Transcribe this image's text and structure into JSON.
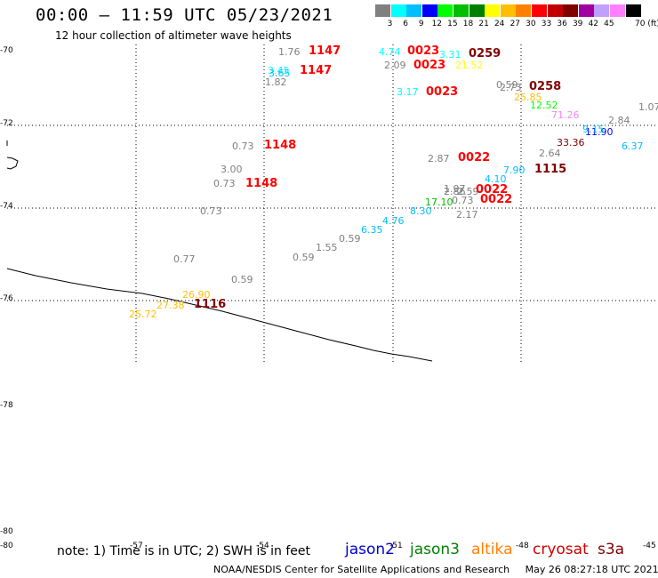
{
  "header": {
    "title": "00:00 – 11:59 UTC 05/23/2021",
    "subtitle": "12 hour collection of altimeter wave heights"
  },
  "legend": {
    "unit": "70 (ft)",
    "bins": [
      {
        "label": "3",
        "color": "#808080"
      },
      {
        "label": "6",
        "color": "#00ffff"
      },
      {
        "label": "9",
        "color": "#00bfff"
      },
      {
        "label": "12",
        "color": "#0000ff"
      },
      {
        "label": "15",
        "color": "#00ff00"
      },
      {
        "label": "18",
        "color": "#00bf00"
      },
      {
        "label": "21",
        "color": "#008000"
      },
      {
        "label": "24",
        "color": "#ffff00"
      },
      {
        "label": "27",
        "color": "#ffbf00"
      },
      {
        "label": "30",
        "color": "#ff8000"
      },
      {
        "label": "33",
        "color": "#ff0000"
      },
      {
        "label": "36",
        "color": "#c00000"
      },
      {
        "label": "39",
        "color": "#800000"
      },
      {
        "label": "42",
        "color": "#a000a0"
      },
      {
        "label": "45",
        "color": "#c0a0ff"
      },
      {
        "label": "",
        "color": "#ff80ff"
      },
      {
        "label": "",
        "color": "#000000"
      }
    ]
  },
  "axes": {
    "lat_labels": [
      "-70",
      "-72",
      "-74",
      "-76",
      "-78",
      "-80",
      "-80"
    ],
    "lon_labels": [
      "-57",
      "-54",
      "-51",
      "-48",
      "-45"
    ]
  },
  "wave_heights": [
    {
      "v": "1.76",
      "c": "#808080"
    },
    {
      "v": "3.45",
      "c": "#00ffff"
    },
    {
      "v": "3.65",
      "c": "#00bfff"
    },
    {
      "v": "1.82",
      "c": "#808080"
    },
    {
      "v": "4.74",
      "c": "#00ffff"
    },
    {
      "v": "2.09",
      "c": "#808080"
    },
    {
      "v": "3.31",
      "c": "#00ffff"
    },
    {
      "v": "21.52",
      "c": "#ffff00"
    },
    {
      "v": "3.17",
      "c": "#00ffff"
    },
    {
      "v": "0.59",
      "c": "#808080"
    },
    {
      "v": "2.73",
      "c": "#808080"
    },
    {
      "v": "25.85",
      "c": "#ffbf00"
    },
    {
      "v": "12.52",
      "c": "#00ff00"
    },
    {
      "v": "71.26",
      "c": "#ff80ff"
    },
    {
      "v": "2.84",
      "c": "#808080"
    },
    {
      "v": "1.07",
      "c": "#808080"
    },
    {
      "v": "11.90",
      "c": "#0000ff"
    },
    {
      "v": "9.15",
      "c": "#00bfff"
    },
    {
      "v": "33.36",
      "c": "#800000"
    },
    {
      "v": "6.37",
      "c": "#00bfff"
    },
    {
      "v": "2.64",
      "c": "#808080"
    },
    {
      "v": "0.73",
      "c": "#808080"
    },
    {
      "v": "3.00",
      "c": "#808080"
    },
    {
      "v": "0.73",
      "c": "#808080"
    },
    {
      "v": "2.87",
      "c": "#808080"
    },
    {
      "v": "7.90",
      "c": "#00bfff"
    },
    {
      "v": "4.10",
      "c": "#00bfff"
    },
    {
      "v": "1.97",
      "c": "#808080"
    },
    {
      "v": "2.86",
      "c": "#808080"
    },
    {
      "v": "2.59",
      "c": "#808080"
    },
    {
      "v": "0.73",
      "c": "#808080"
    },
    {
      "v": "17.10",
      "c": "#00bf00"
    },
    {
      "v": "8.30",
      "c": "#00bfff"
    },
    {
      "v": "2.17",
      "c": "#808080"
    },
    {
      "v": "0.73",
      "c": "#808080"
    },
    {
      "v": "4.76",
      "c": "#00bfff"
    },
    {
      "v": "6.35",
      "c": "#00bfff"
    },
    {
      "v": "0.59",
      "c": "#808080"
    },
    {
      "v": "1.55",
      "c": "#808080"
    },
    {
      "v": "0.59",
      "c": "#808080"
    },
    {
      "v": "0.77",
      "c": "#808080"
    },
    {
      "v": "0.59",
      "c": "#808080"
    },
    {
      "v": "26.90",
      "c": "#ffbf00"
    },
    {
      "v": "27.38",
      "c": "#ffbf00"
    },
    {
      "v": "25.72",
      "c": "#ffbf00"
    }
  ],
  "time_labels": [
    {
      "v": "1147",
      "c": "#ff0000"
    },
    {
      "v": "1147",
      "c": "#ff0000"
    },
    {
      "v": "0023",
      "c": "#ff0000"
    },
    {
      "v": "0023",
      "c": "#ff0000"
    },
    {
      "v": "0023",
      "c": "#ff0000"
    },
    {
      "v": "0259",
      "c": "#800000"
    },
    {
      "v": "0258",
      "c": "#800000"
    },
    {
      "v": "1148",
      "c": "#ff0000"
    },
    {
      "v": "1148",
      "c": "#ff0000"
    },
    {
      "v": "0022",
      "c": "#ff0000"
    },
    {
      "v": "0022",
      "c": "#ff0000"
    },
    {
      "v": "0022",
      "c": "#ff0000"
    },
    {
      "v": "1115",
      "c": "#800000"
    },
    {
      "v": "1116",
      "c": "#800000"
    }
  ],
  "footer": {
    "note": "note: 1) Time is in UTC; 2) SWH is in feet",
    "satellites": [
      {
        "name": "jason2",
        "color": "#0000cc"
      },
      {
        "name": "jason3",
        "color": "#008000"
      },
      {
        "name": "altika",
        "color": "#ff8000"
      },
      {
        "name": "cryosat",
        "color": "#cc0000"
      },
      {
        "name": "s3a",
        "color": "#800000"
      }
    ],
    "credit": "NOAA/NESDIS Center for Satellite Applications and Research",
    "timestamp": "May 26 08:27:18 UTC 2021"
  }
}
